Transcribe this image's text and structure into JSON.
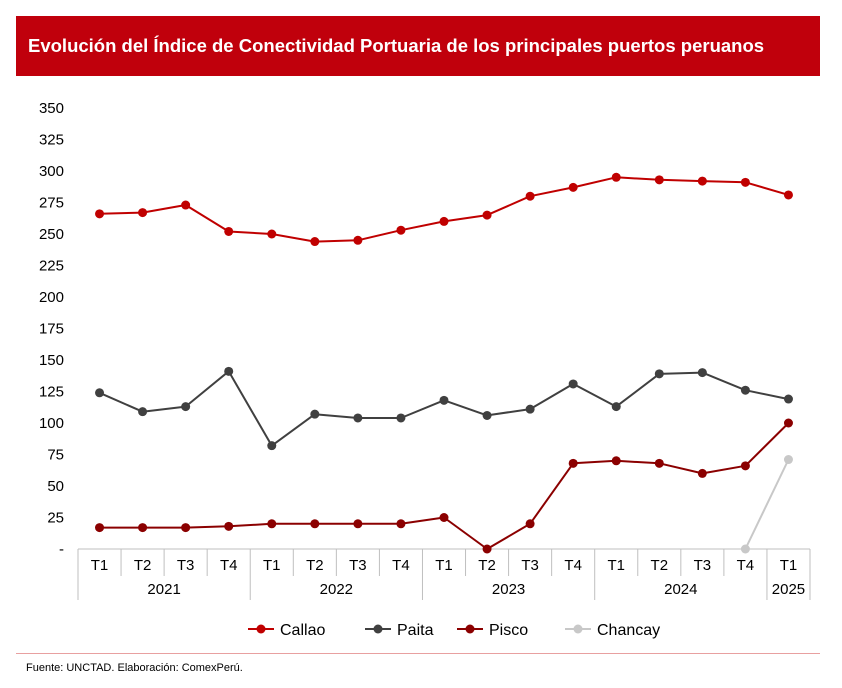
{
  "header": {
    "title": "Evolución del Índice de Conectividad Portuaria de los principales puertos peruanos"
  },
  "footer": {
    "source": "Fuente: UNCTAD. Elaboración: ComexPerú."
  },
  "chart_data": {
    "type": "line",
    "title": "Evolución del Índice de Conectividad Portuaria de los principales puertos peruanos",
    "xlabel": "",
    "ylabel": "",
    "ylim": [
      0,
      350
    ],
    "yticks": [
      0,
      25,
      50,
      75,
      100,
      125,
      150,
      175,
      200,
      225,
      250,
      275,
      300,
      325,
      350
    ],
    "ytick_labels": [
      "-",
      "25",
      "50",
      "75",
      "100",
      "125",
      "150",
      "175",
      "200",
      "225",
      "250",
      "275",
      "300",
      "325",
      "350"
    ],
    "grid": false,
    "legend_position": "bottom",
    "categories": [
      "T1",
      "T2",
      "T3",
      "T4",
      "T1",
      "T2",
      "T3",
      "T4",
      "T1",
      "T2",
      "T3",
      "T4",
      "T1",
      "T2",
      "T3",
      "T4",
      "T1"
    ],
    "groups": [
      {
        "label": "2021",
        "count": 4
      },
      {
        "label": "2022",
        "count": 4
      },
      {
        "label": "2023",
        "count": 4
      },
      {
        "label": "2024",
        "count": 4
      },
      {
        "label": "2025",
        "count": 1
      }
    ],
    "series": [
      {
        "name": "Callao",
        "color": "#c00000",
        "values": [
          266,
          267,
          273,
          252,
          250,
          244,
          245,
          253,
          260,
          265,
          280,
          287,
          295,
          293,
          292,
          291,
          281
        ]
      },
      {
        "name": "Paita",
        "color": "#404040",
        "values": [
          124,
          109,
          113,
          141,
          82,
          107,
          104,
          104,
          118,
          106,
          111,
          131,
          113,
          139,
          140,
          126,
          119
        ]
      },
      {
        "name": "Pisco",
        "color": "#8b0000",
        "values": [
          17,
          17,
          17,
          18,
          20,
          20,
          20,
          20,
          25,
          0,
          20,
          68,
          70,
          68,
          60,
          66,
          100
        ]
      },
      {
        "name": "Chancay",
        "color": "#c8c8c8",
        "values": [
          null,
          null,
          null,
          null,
          null,
          null,
          null,
          null,
          null,
          null,
          null,
          null,
          null,
          null,
          null,
          0,
          71
        ]
      }
    ]
  }
}
